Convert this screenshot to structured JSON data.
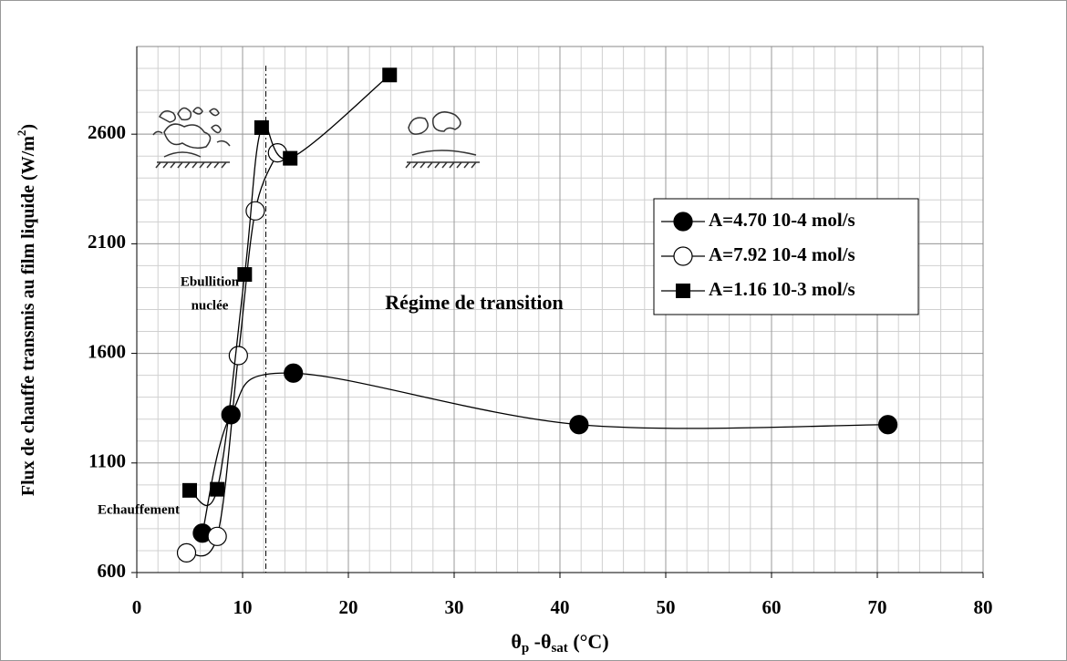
{
  "chart_data": {
    "type": "line",
    "x_label": [
      "θ",
      "p",
      " -θ",
      "sat",
      " (°C)"
    ],
    "y_label": [
      "Flux  de chauffe transmis au film liquide (W/m",
      "2",
      ")"
    ],
    "xlim": [
      0,
      80
    ],
    "xticks": [
      0,
      10,
      20,
      30,
      40,
      50,
      60,
      70,
      80
    ],
    "ylim": [
      600,
      3000
    ],
    "yticks": [
      600,
      1100,
      1600,
      2100,
      2600
    ],
    "xminor": 2,
    "yminor": 100,
    "grid": true,
    "legend": "right",
    "vline_x": 12.2,
    "annotations": [
      "Ebullition",
      "nuclée",
      "Echauffement",
      "Régime de transition"
    ],
    "series": [
      {
        "name": "A=4.70 10-4 mol/s",
        "marker": "filled-circle",
        "color": "#000000",
        "x": [
          6.2,
          8.9,
          14.8,
          41.8,
          71.0
        ],
        "values": [
          780,
          1320,
          1510,
          1275,
          1275
        ]
      },
      {
        "name": "A=7.92 10-4 mol/s",
        "marker": "open-circle",
        "color": "#000000",
        "x": [
          4.7,
          7.6,
          9.6,
          11.2,
          13.3
        ],
        "values": [
          690,
          765,
          1590,
          2250,
          2515
        ]
      },
      {
        "name": "A=1.16 10-3 mol/s",
        "marker": "square",
        "color": "#000000",
        "x": [
          5.0,
          7.6,
          10.2,
          11.8,
          14.5,
          23.9
        ],
        "values": [
          975,
          980,
          1960,
          2630,
          2490,
          2870
        ]
      }
    ]
  }
}
